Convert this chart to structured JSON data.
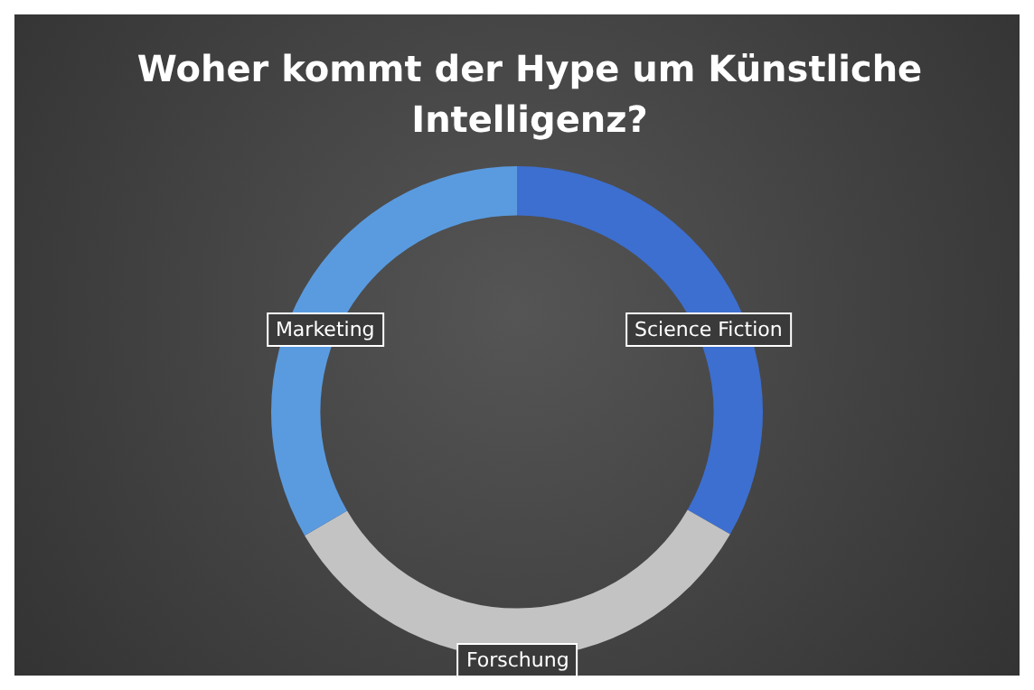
{
  "chart_data": {
    "type": "donut",
    "title": "Woher kommt der Hype um Künstliche Intelligenz?",
    "categories": [
      "Science Fiction",
      "Forschung",
      "Marketing"
    ],
    "values": [
      33.3,
      33.3,
      33.4
    ],
    "colors": [
      "#3d6fd0",
      "#c3c3c3",
      "#5a9be0"
    ],
    "legend": false
  }
}
